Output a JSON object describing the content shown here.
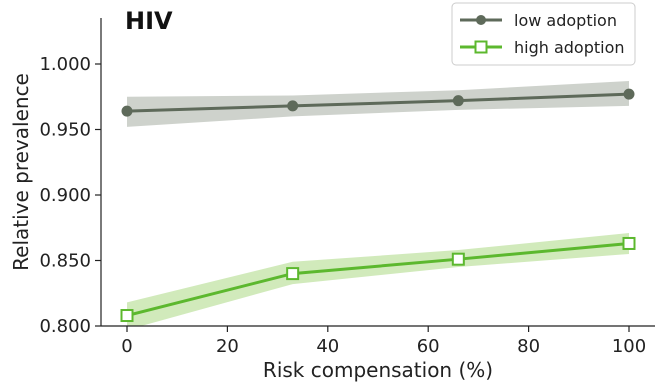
{
  "chart_data": {
    "type": "line",
    "title": "HIV",
    "xlabel": "Risk compensation (%)",
    "ylabel": "Relative prevalence",
    "xlim": [
      -5,
      105
    ],
    "ylim": [
      0.8,
      1.035
    ],
    "x_ticks": [
      0,
      20,
      40,
      60,
      80,
      100
    ],
    "x_tick_labels": [
      "0",
      "20",
      "40",
      "60",
      "80",
      "100"
    ],
    "y_ticks": [
      0.8,
      0.85,
      0.9,
      0.95,
      1.0
    ],
    "y_tick_labels": [
      "0.800",
      "0.850",
      "0.900",
      "0.950",
      "1.000"
    ],
    "grid": false,
    "legend_position": "top-right",
    "series": [
      {
        "name": "low adoption",
        "color": "#5e6a5a",
        "band_color": "#c9cdc7",
        "marker": "filled-circle",
        "x": [
          0,
          33,
          66,
          100
        ],
        "values": [
          0.964,
          0.968,
          0.972,
          0.977
        ],
        "lower": [
          0.952,
          0.96,
          0.965,
          0.968
        ],
        "upper": [
          0.975,
          0.976,
          0.98,
          0.987
        ]
      },
      {
        "name": "high adoption",
        "color": "#5cb82e",
        "band_color": "#cce8b4",
        "marker": "open-square",
        "x": [
          0,
          33,
          66,
          100
        ],
        "values": [
          0.808,
          0.84,
          0.851,
          0.863
        ],
        "lower": [
          0.797,
          0.832,
          0.845,
          0.855
        ],
        "upper": [
          0.818,
          0.849,
          0.858,
          0.871
        ]
      }
    ]
  }
}
